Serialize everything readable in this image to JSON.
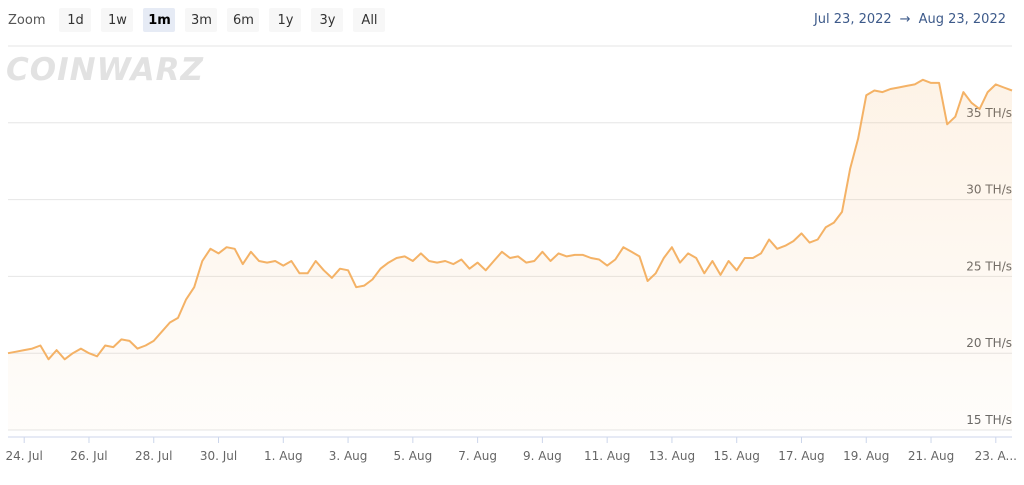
{
  "zoom": {
    "label": "Zoom",
    "buttons": [
      "1d",
      "1w",
      "1m",
      "3m",
      "6m",
      "1y",
      "3y",
      "All"
    ]
  },
  "range": {
    "from": "Jul 23, 2022",
    "arrow": "→",
    "to": "Aug 23, 2022"
  },
  "watermark": "COINWARZ",
  "chart_data": {
    "type": "area",
    "color": "#f4b266",
    "grid": true,
    "categories": [
      null,
      null,
      "24. Jul",
      null,
      null,
      null,
      null,
      null,
      null,
      null,
      "26. Jul",
      null,
      null,
      null,
      null,
      null,
      null,
      null,
      "28. Jul",
      null,
      null,
      null,
      null,
      null,
      null,
      null,
      "30. Jul",
      null,
      null,
      null,
      null,
      null,
      null,
      null,
      "1. Aug",
      null,
      null,
      null,
      null,
      null,
      null,
      null,
      "3. Aug",
      null,
      null,
      null,
      null,
      null,
      null,
      null,
      "5. Aug",
      null,
      null,
      null,
      null,
      null,
      null,
      null,
      "7. Aug",
      null,
      null,
      null,
      null,
      null,
      null,
      null,
      "9. Aug",
      null,
      null,
      null,
      null,
      null,
      null,
      null,
      "11. Aug",
      null,
      null,
      null,
      null,
      null,
      null,
      null,
      "13. Aug",
      null,
      null,
      null,
      null,
      null,
      null,
      null,
      "15. Aug",
      null,
      null,
      null,
      null,
      null,
      null,
      null,
      "17. Aug",
      null,
      null,
      null,
      null,
      null,
      null,
      null,
      "19. Aug",
      null,
      null,
      null,
      null,
      null,
      null,
      null,
      "21. Aug",
      null,
      null,
      null,
      null,
      null,
      null,
      null,
      "23. A...",
      null,
      null
    ],
    "values": [
      20.0,
      20.1,
      20.2,
      20.3,
      20.5,
      19.6,
      20.2,
      19.6,
      20.0,
      20.3,
      20.0,
      19.8,
      20.5,
      20.4,
      20.9,
      20.8,
      20.3,
      20.5,
      20.8,
      21.4,
      22.0,
      22.3,
      23.5,
      24.3,
      26.0,
      26.8,
      26.5,
      26.9,
      26.8,
      25.8,
      26.6,
      26.0,
      25.9,
      26.0,
      25.7,
      26.0,
      25.2,
      25.2,
      26.0,
      25.4,
      24.9,
      25.5,
      25.4,
      24.3,
      24.4,
      24.8,
      25.5,
      25.9,
      26.2,
      26.3,
      26.0,
      26.5,
      26.0,
      25.9,
      26.0,
      25.8,
      26.1,
      25.5,
      25.9,
      25.4,
      26.0,
      26.6,
      26.2,
      26.3,
      25.9,
      26.0,
      26.6,
      26.0,
      26.5,
      26.3,
      26.4,
      26.4,
      26.2,
      26.1,
      25.7,
      26.1,
      26.9,
      26.6,
      26.3,
      24.7,
      25.2,
      26.2,
      26.9,
      25.9,
      26.5,
      26.2,
      25.2,
      26.0,
      25.1,
      26.0,
      25.4,
      26.2,
      26.2,
      26.5,
      27.4,
      26.8,
      27.0,
      27.3,
      27.8,
      27.2,
      27.4,
      28.2,
      28.5,
      29.2,
      32.0,
      34.0,
      36.8,
      37.1,
      37.0,
      37.2,
      37.3,
      37.4,
      37.5,
      37.8,
      37.6,
      37.6,
      34.9,
      35.4,
      37.0,
      36.3,
      35.9,
      37.0,
      37.5,
      37.3,
      37.1
    ],
    "ylim": [
      15,
      40
    ],
    "yticks": [
      {
        "value": 15,
        "label": "15 TH/s"
      },
      {
        "value": 20,
        "label": "20 TH/s"
      },
      {
        "value": 25,
        "label": "25 TH/s"
      },
      {
        "value": 30,
        "label": "30 TH/s"
      },
      {
        "value": 35,
        "label": "35 TH/s"
      }
    ]
  }
}
